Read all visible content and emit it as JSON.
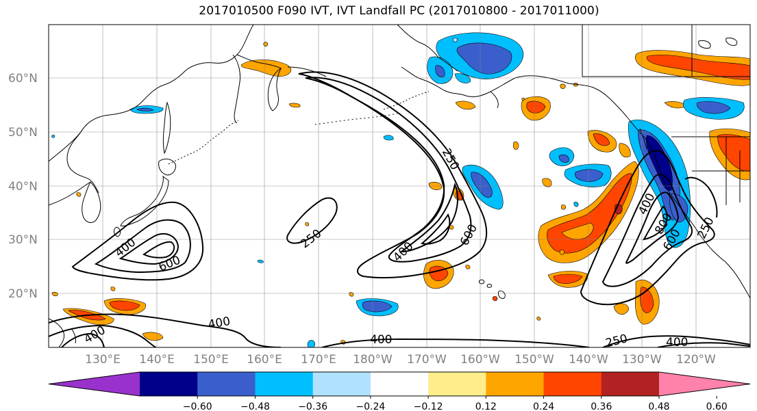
{
  "title": "2017010500 F090 IVT, IVT Landfall PC (2017010800 - 2017011000)",
  "latitude_labels": [
    "60°N",
    "50°N",
    "40°N",
    "30°N",
    "20°N"
  ],
  "longitude_labels": [
    "130°E",
    "140°E",
    "150°E",
    "160°E",
    "170°E",
    "180°W",
    "170°W",
    "160°W",
    "150°W",
    "140°W",
    "130°W",
    "120°W"
  ],
  "contour_labels": [
    "250",
    "400",
    "600",
    "250",
    "400",
    "600",
    "400",
    "600",
    "800",
    "250",
    "400",
    "400",
    "400",
    "250",
    "400"
  ],
  "colorbar": {
    "tick_labels": [
      "−0.60",
      "−0.48",
      "−0.36",
      "−0.24",
      "−0.12",
      "0.12",
      "0.24",
      "0.36",
      "0.48",
      "0.60"
    ],
    "colors": [
      "#9932cc",
      "#00008b",
      "#3a5fcd",
      "#00bfff",
      "#b0e2ff",
      "#ffffff",
      "#ffec8b",
      "#ffa500",
      "#ff4500",
      "#b22222",
      "#ff82ab"
    ]
  },
  "colors": {
    "contour_line": "#000000",
    "coastline": "#000000",
    "grid": "#808080"
  }
}
